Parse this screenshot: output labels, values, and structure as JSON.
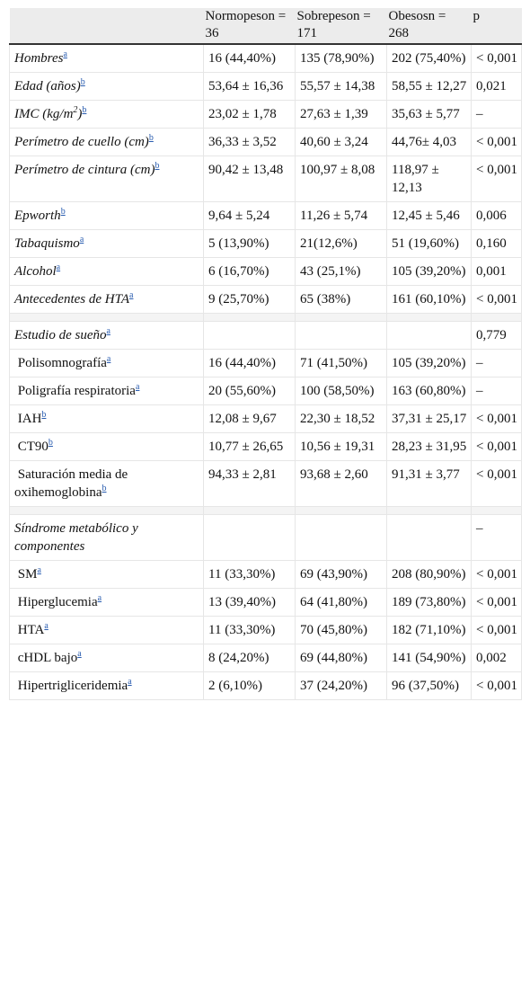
{
  "table": {
    "header": [
      "Normopeson = 36",
      "Sobrepeson = 171",
      "Obesosn = 268",
      "p"
    ],
    "rows": [
      {
        "label": "Hombres",
        "note": "a",
        "cells": [
          "16 (44,40%)",
          "135 (78,90%)",
          "202 (75,40%)"
        ],
        "p": "< 0,001"
      },
      {
        "label": "Edad (años)",
        "note": "b",
        "cells": [
          "53,64 ± 16,36",
          "55,57 ± 14,38",
          "58,55 ± 12,27"
        ],
        "p": "0,021"
      },
      {
        "label": "IMC (kg/m",
        "exponent": "2",
        "label_end": ")",
        "note": "b",
        "cells": [
          "23,02 ± 1,78",
          "27,63 ± 1,39",
          "35,63 ± 5,77"
        ],
        "p": "–"
      },
      {
        "label": "Perímetro de cuello (cm)",
        "note": "b",
        "cells": [
          "36,33 ± 3,52",
          "40,60 ± 3,24",
          "44,76± 4,03"
        ],
        "p": "< 0,001"
      },
      {
        "label": "Perímetro de cintura (cm)",
        "note": "b",
        "cells": [
          "90,42 ± 13,48",
          "100,97 ± 8,08",
          "118,97 ± 12,13"
        ],
        "p": "< 0,001"
      },
      {
        "label": "Epworth",
        "note": "b",
        "cells": [
          "9,64 ± 5,24",
          "11,26 ± 5,74",
          "12,45 ± 5,46"
        ],
        "p": "0,006"
      },
      {
        "label": "Tabaquismo",
        "note": "a",
        "cells": [
          "5 (13,90%)",
          "21(12,6%)",
          "51 (19,60%)"
        ],
        "p": "0,160"
      },
      {
        "label": "Alcohol",
        "note": "a",
        "cells": [
          "6 (16,70%)",
          "43 (25,1%)",
          "105 (39,20%)"
        ],
        "p": "0,001"
      },
      {
        "label": "Antecedentes de HTA",
        "note": "a",
        "cells": [
          "9 (25,70%)",
          "65 (38%)",
          "161 (60,10%)"
        ],
        "p": "< 0,001"
      },
      {
        "label": "Estudio de sueño",
        "note": "a",
        "p": "0,779"
      },
      {
        "label": "Polisomnografía",
        "note": "a",
        "cells": [
          "16 (44,40%)",
          "71 (41,50%)",
          "105 (39,20%)"
        ],
        "p": "–"
      },
      {
        "label": "Poligrafía respiratoria",
        "note": "a",
        "cells": [
          "20 (55,60%)",
          "100 (58,50%)",
          "163 (60,80%)"
        ],
        "p": "–"
      },
      {
        "label": "IAH",
        "note": "b",
        "cells": [
          "12,08 ± 9,67",
          "22,30 ± 18,52",
          "37,31 ± 25,17"
        ],
        "p": "< 0,001"
      },
      {
        "label": "CT90",
        "note": "b",
        "cells": [
          "10,77 ± 26,65",
          "10,56 ± 19,31",
          "28,23 ± 31,95"
        ],
        "p": "< 0,001"
      },
      {
        "label": "Saturación media de oxihemoglobina",
        "note": "b",
        "cells": [
          "94,33 ± 2,81",
          "93,68 ± 2,60",
          "91,31 ± 3,77"
        ],
        "p": "< 0,001"
      },
      {
        "label": "Síndrome metabólico y componentes",
        "p": "–"
      },
      {
        "label": "SM",
        "note": "a",
        "cells": [
          "11 (33,30%)",
          "69 (43,90%)",
          "208 (80,90%)"
        ],
        "p": "< 0,001"
      },
      {
        "label": "Hiperglucemia",
        "note": "a",
        "cells": [
          "13 (39,40%)",
          "64 (41,80%)",
          "189 (73,80%)"
        ],
        "p": "< 0,001"
      },
      {
        "label": "HTA",
        "note": "a",
        "cells": [
          "11 (33,30%)",
          "70 (45,80%)",
          "182 (71,10%)"
        ],
        "p": "< 0,001"
      },
      {
        "label": "cHDL bajo",
        "note": "a",
        "cells": [
          "8 (24,20%)",
          "69 (44,80%)",
          "141 (54,90%)"
        ],
        "p": "0,002"
      },
      {
        "label": "Hipertrigliceridemia",
        "note": "a",
        "cells": [
          "2 (6,10%)",
          "37 (24,20%)",
          "96 (37,50%)"
        ],
        "p": "< 0,001"
      }
    ]
  }
}
